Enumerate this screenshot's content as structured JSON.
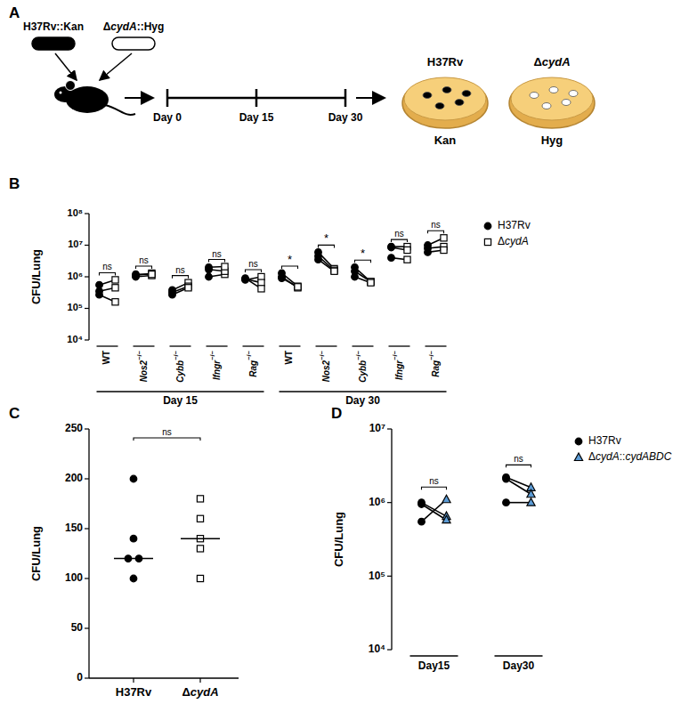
{
  "diagram": {
    "panel": "A",
    "strains": [
      {
        "label": "H37Rv::Kan",
        "color": "#000000"
      },
      {
        "label": "ΔcydA::Hyg",
        "color": "#ffffff"
      }
    ],
    "timeline": [
      "Day 0",
      "Day 15",
      "Day 30"
    ],
    "plates": [
      {
        "strain": "H37Rv",
        "antibiotic": "Kan",
        "color": "#000000"
      },
      {
        "strain": "ΔcydA",
        "antibiotic": "Hyg",
        "color": "#ffffff"
      }
    ]
  },
  "chart_data": [
    {
      "panel": "B",
      "type": "scatter",
      "ylabel": "CFU/Lung",
      "categories": [
        "WT",
        "Nos2−/−",
        "Cybb−/−",
        "Ifngr−/−",
        "Rag−/−",
        "WT",
        "Nos2−/−",
        "Cybb−/−",
        "Ifngr−/−",
        "Rag−/−"
      ],
      "groups": [
        {
          "label": "Day 15",
          "start": 0,
          "end": 4
        },
        {
          "label": "Day 30",
          "start": 5,
          "end": 9
        }
      ],
      "series": [
        {
          "name": "H37Rv",
          "color": "#000000",
          "marker": "circle",
          "values": [
            [
              550000,
              350000,
              270000
            ],
            [
              1000000,
              1100000,
              1200000
            ],
            [
              380000,
              320000,
              270000
            ],
            [
              1000000,
              1700000,
              2000000
            ],
            [
              800000,
              850000,
              900000
            ],
            [
              1300000,
              1000000,
              900000
            ],
            [
              6000000,
              4500000,
              3500000
            ],
            [
              2000000,
              1500000,
              1000000
            ],
            [
              9000000,
              8500000,
              4000000
            ],
            [
              10000000,
              8000000,
              6000000
            ]
          ]
        },
        {
          "name": "ΔcydA",
          "color": "#ffffff",
          "marker": "square",
          "values": [
            [
              800000,
              450000,
              160000
            ],
            [
              1100000,
              1300000,
              1200000
            ],
            [
              650000,
              500000,
              450000
            ],
            [
              1200000,
              1500000,
              2100000
            ],
            [
              1000000,
              650000,
              420000
            ],
            [
              500000,
              450000,
              480000
            ],
            [
              1800000,
              1600000,
              1500000
            ],
            [
              700000,
              700000,
              650000
            ],
            [
              9000000,
              7000000,
              3500000
            ],
            [
              17000000,
              9000000,
              7000000
            ]
          ]
        }
      ],
      "annotations": [
        "ns",
        "ns",
        "ns",
        "ns",
        "ns",
        "*",
        "*",
        "*",
        "ns",
        "ns"
      ],
      "log": "y",
      "ylim": [
        10000,
        100000000
      ],
      "yticks": [
        {
          "value": 10000,
          "label": "10⁴"
        },
        {
          "value": 100000,
          "label": "10⁵"
        },
        {
          "value": 1000000,
          "label": "10⁶"
        },
        {
          "value": 10000000,
          "label": "10⁷"
        },
        {
          "value": 100000000,
          "label": "10⁸"
        }
      ],
      "legend": "right"
    },
    {
      "panel": "C",
      "type": "scatter",
      "ylabel": "CFU/Lung",
      "series": [
        {
          "name": "H37Rv",
          "color": "#000000",
          "marker": "circle",
          "values": [
            200,
            140,
            120,
            120,
            100
          ],
          "median": 120
        },
        {
          "name": "ΔcydA",
          "color": "#ffffff",
          "marker": "square",
          "values": [
            180,
            160,
            140,
            130,
            100
          ],
          "median": 140
        }
      ],
      "annotations": [
        "ns"
      ],
      "ylim": [
        0,
        250
      ],
      "yticks": [
        0,
        50,
        100,
        150,
        200,
        250
      ]
    },
    {
      "panel": "D",
      "type": "scatter",
      "ylabel": "CFU/Lung",
      "categories": [
        "Day15",
        "Day30"
      ],
      "series": [
        {
          "name": "H37Rv",
          "color": "#000000",
          "marker": "circle",
          "values": [
            [
              1000000,
              950000,
              550000
            ],
            [
              2200000,
              2100000,
              1000000
            ]
          ]
        },
        {
          "name": "ΔcydA::cydABDC",
          "color": "#5b9bd5",
          "marker": "triangle",
          "values": [
            [
              650000,
              580000,
              1100000
            ],
            [
              1600000,
              1300000,
              1000000
            ]
          ]
        }
      ],
      "annotations": [
        "ns",
        "ns"
      ],
      "log": "y",
      "ylim": [
        10000,
        10000000
      ],
      "yticks": [
        {
          "value": 10000,
          "label": "10⁴"
        },
        {
          "value": 100000,
          "label": "10⁵"
        },
        {
          "value": 1000000,
          "label": "10⁶"
        },
        {
          "value": 10000000,
          "label": "10⁷"
        }
      ],
      "legend": "right"
    }
  ]
}
